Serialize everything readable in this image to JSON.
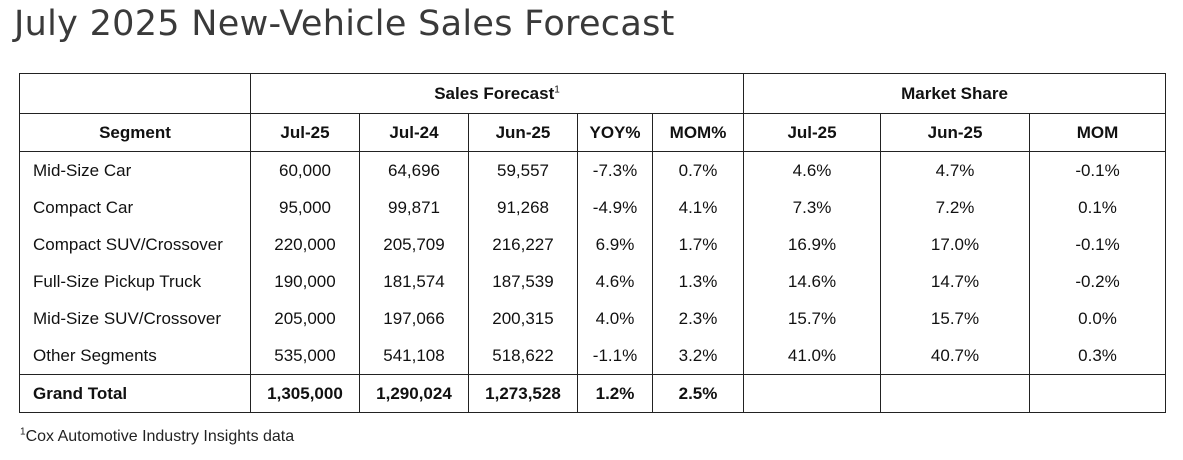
{
  "title": "July 2025 New-Vehicle Sales Forecast",
  "group_headers": {
    "sales_forecast": "Sales Forecast",
    "sales_forecast_sup": "1",
    "market_share": "Market Share"
  },
  "columns": {
    "segment": "Segment",
    "sf_jul25": "Jul-25",
    "sf_jul24": "Jul-24",
    "sf_jun25": "Jun-25",
    "yoy": "YOY%",
    "mom": "MOM%",
    "ms_jul25": "Jul-25",
    "ms_jun25": "Jun-25",
    "ms_mom": "MOM"
  },
  "rows": [
    {
      "segment": "Mid-Size Car",
      "jul25": "60,000",
      "jul24": "64,696",
      "jun25": "59,557",
      "yoy": "-7.3%",
      "mom": "0.7%",
      "ms_jul25": "4.6%",
      "ms_jun25": "4.7%",
      "ms_mom": "-0.1%"
    },
    {
      "segment": "Compact Car",
      "jul25": "95,000",
      "jul24": "99,871",
      "jun25": "91,268",
      "yoy": "-4.9%",
      "mom": "4.1%",
      "ms_jul25": "7.3%",
      "ms_jun25": "7.2%",
      "ms_mom": "0.1%"
    },
    {
      "segment": "Compact SUV/Crossover",
      "jul25": "220,000",
      "jul24": "205,709",
      "jun25": "216,227",
      "yoy": "6.9%",
      "mom": "1.7%",
      "ms_jul25": "16.9%",
      "ms_jun25": "17.0%",
      "ms_mom": "-0.1%"
    },
    {
      "segment": "Full-Size Pickup Truck",
      "jul25": "190,000",
      "jul24": "181,574",
      "jun25": "187,539",
      "yoy": "4.6%",
      "mom": "1.3%",
      "ms_jul25": "14.6%",
      "ms_jun25": "14.7%",
      "ms_mom": "-0.2%"
    },
    {
      "segment": "Mid-Size SUV/Crossover",
      "jul25": "205,000",
      "jul24": "197,066",
      "jun25": "200,315",
      "yoy": "4.0%",
      "mom": "2.3%",
      "ms_jul25": "15.7%",
      "ms_jun25": "15.7%",
      "ms_mom": "0.0%"
    },
    {
      "segment": "Other Segments",
      "jul25": "535,000",
      "jul24": "541,108",
      "jun25": "518,622",
      "yoy": "-1.1%",
      "mom": "3.2%",
      "ms_jul25": "41.0%",
      "ms_jun25": "40.7%",
      "ms_mom": "0.3%"
    }
  ],
  "total": {
    "segment": "Grand Total",
    "jul25": "1,305,000",
    "jul24": "1,290,024",
    "jun25": "1,273,528",
    "yoy": "1.2%",
    "mom": "2.5%"
  },
  "footnote": {
    "sup": "1",
    "text": "Cox Automotive Industry Insights data"
  }
}
